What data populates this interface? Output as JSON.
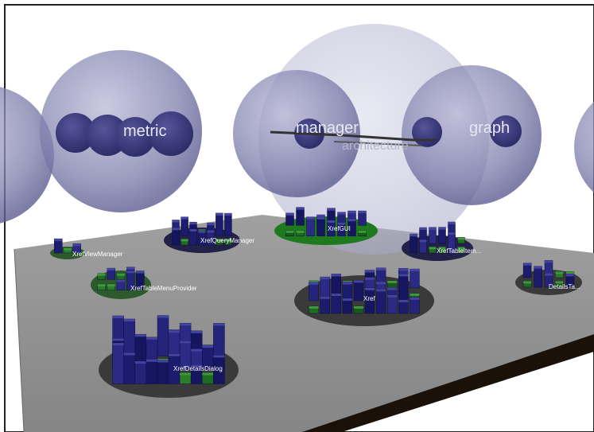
{
  "spheres": [
    {
      "id": "left",
      "label": ""
    },
    {
      "id": "metric",
      "label": "metric"
    },
    {
      "id": "architecture",
      "label": "architecture"
    },
    {
      "id": "manager",
      "label": "manager"
    },
    {
      "id": "graph",
      "label": "graph"
    },
    {
      "id": "right",
      "label": ""
    }
  ],
  "districts": [
    {
      "id": "xref-view-manager",
      "label": "XrefViewManager"
    },
    {
      "id": "xref-query-manager",
      "label": "XrefQueryManager"
    },
    {
      "id": "xref-gui",
      "label": "XrefGUI"
    },
    {
      "id": "xref-table-item",
      "label": "XrefTableItem..."
    },
    {
      "id": "xref-table-menu-provider",
      "label": "XrefTableMenuProvider"
    },
    {
      "id": "xref",
      "label": "Xref"
    },
    {
      "id": "details-table",
      "label": "DetailsTa..."
    },
    {
      "id": "xref-details-dialog",
      "label": "XrefDetailsDialog"
    }
  ],
  "colors": {
    "background": "#ffffff",
    "sphere": "#8a8ab4",
    "inner_sphere": "#3a3a78",
    "plane_top": "#8d8d8d",
    "plane_edge": "#1a1208",
    "building": "#1c1c6e",
    "building_small": "#1f6b1f"
  }
}
